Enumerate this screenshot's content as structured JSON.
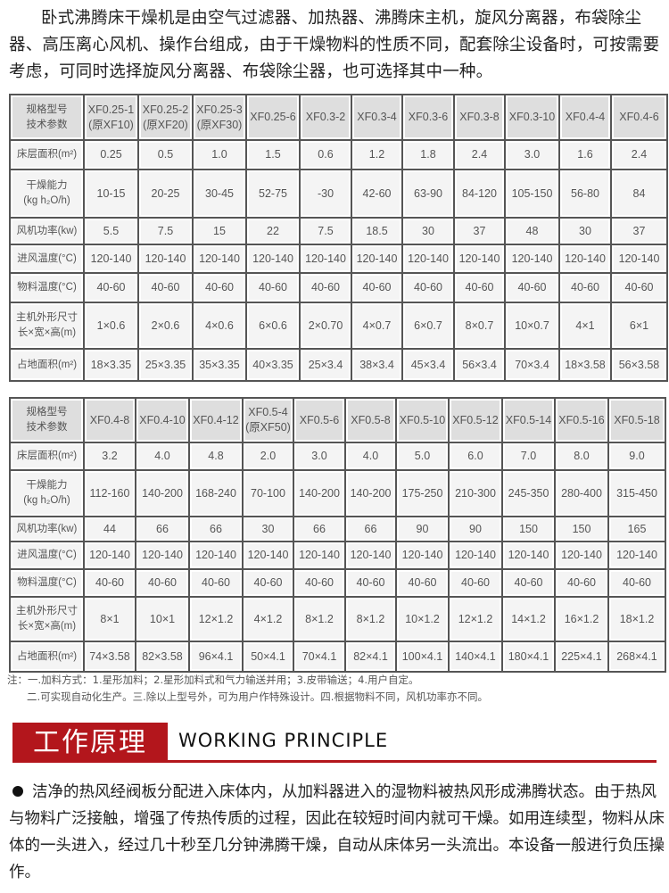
{
  "intro": "卧式沸腾床干燥机是由空气过滤器、加热器、沸腾床主机，旋风分离器，布袋除尘器、高压离心风机、操作台组成，由于干燥物料的性质不同，配套除尘设备时，可按需要考虑，可同时选择旋风分离器、布袋除尘器，也可选择其中一种。",
  "table1": {
    "header_label": [
      "规格型号",
      "技术参数"
    ],
    "models": [
      [
        "XF0.25-1",
        "(原XF10)"
      ],
      [
        "XF0.25-2",
        "(原XF20)"
      ],
      [
        "XF0.25-3",
        "(原XF30)"
      ],
      [
        "XF0.25-6",
        ""
      ],
      [
        "XF0.3-2",
        ""
      ],
      [
        "XF0.3-4",
        ""
      ],
      [
        "XF0.3-6",
        ""
      ],
      [
        "XF0.3-8",
        ""
      ],
      [
        "XF0.3-10",
        ""
      ],
      [
        "XF0.4-4",
        ""
      ],
      [
        "XF0.4-6",
        ""
      ]
    ],
    "rows": [
      {
        "label": [
          "床层面积(m²)"
        ],
        "values": [
          "0.25",
          "0.5",
          "1.0",
          "1.5",
          "0.6",
          "1.2",
          "1.8",
          "2.4",
          "3.0",
          "1.6",
          "2.4"
        ]
      },
      {
        "label": [
          "干燥能力",
          "(kg h₂O/h)"
        ],
        "values": [
          "10-15",
          "20-25",
          "30-45",
          "52-75",
          "-30",
          "42-60",
          "63-90",
          "84-120",
          "105-150",
          "56-80",
          "84"
        ]
      },
      {
        "label": [
          "风机功率(kw)"
        ],
        "values": [
          "5.5",
          "7.5",
          "15",
          "22",
          "7.5",
          "18.5",
          "30",
          "37",
          "48",
          "30",
          "37"
        ]
      },
      {
        "label": [
          "进风温度(°C)"
        ],
        "values": [
          "120-140",
          "120-140",
          "120-140",
          "120-140",
          "120-140",
          "120-140",
          "120-140",
          "120-140",
          "120-140",
          "120-140",
          "120-140"
        ]
      },
      {
        "label": [
          "物料温度(°C)"
        ],
        "values": [
          "40-60",
          "40-60",
          "40-60",
          "40-60",
          "40-60",
          "40-60",
          "40-60",
          "40-60",
          "40-60",
          "40-60",
          "40-60"
        ]
      },
      {
        "label": [
          "主机外形尺寸",
          "长×宽×高(m)"
        ],
        "values": [
          "1×0.6",
          "2×0.6",
          "4×0.6",
          "6×0.6",
          "2×0.70",
          "4×0.7",
          "6×0.7",
          "8×0.7",
          "10×0.7",
          "4×1",
          "6×1"
        ]
      },
      {
        "label": [
          "占地面积(m²)"
        ],
        "values": [
          "18×3.35",
          "25×3.35",
          "35×3.35",
          "40×3.35",
          "25×3.4",
          "38×3.4",
          "45×3.4",
          "56×3.4",
          "70×3.4",
          "18×3.58",
          "56×3.58"
        ]
      }
    ]
  },
  "table2": {
    "header_label": [
      "规格型号",
      "技术参数"
    ],
    "models": [
      [
        "XF0.4-8",
        ""
      ],
      [
        "XF0.4-10",
        ""
      ],
      [
        "XF0.4-12",
        ""
      ],
      [
        "XF0.5-4",
        "(原XF50)"
      ],
      [
        "XF0.5-6",
        ""
      ],
      [
        "XF0.5-8",
        ""
      ],
      [
        "XF0.5-10",
        ""
      ],
      [
        "XF0.5-12",
        ""
      ],
      [
        "XF0.5-14",
        ""
      ],
      [
        "XF0.5-16",
        ""
      ],
      [
        "XF0.5-18",
        ""
      ]
    ],
    "rows": [
      {
        "label": [
          "床层面积(m²)"
        ],
        "values": [
          "3.2",
          "4.0",
          "4.8",
          "2.0",
          "3.0",
          "4.0",
          "5.0",
          "6.0",
          "7.0",
          "8.0",
          "9.0"
        ]
      },
      {
        "label": [
          "干燥能力",
          "(kg h₂O/h)"
        ],
        "values": [
          "112-160",
          "140-200",
          "168-240",
          "70-100",
          "140-200",
          "140-200",
          "175-250",
          "210-300",
          "245-350",
          "280-400",
          "315-450"
        ]
      },
      {
        "label": [
          "风机功率(kw)"
        ],
        "values": [
          "44",
          "66",
          "66",
          "30",
          "66",
          "66",
          "90",
          "90",
          "150",
          "150",
          "165"
        ]
      },
      {
        "label": [
          "进风温度(°C)"
        ],
        "values": [
          "120-140",
          "120-140",
          "120-140",
          "120-140",
          "120-140",
          "120-140",
          "120-140",
          "120-140",
          "120-140",
          "120-140",
          "120-140"
        ]
      },
      {
        "label": [
          "物料温度(°C)"
        ],
        "values": [
          "40-60",
          "40-60",
          "40-60",
          "40-60",
          "40-60",
          "40-60",
          "40-60",
          "40-60",
          "40-60",
          "40-60",
          "40-60"
        ]
      },
      {
        "label": [
          "主机外形尺寸",
          "长×宽×高(m)"
        ],
        "values": [
          "8×1",
          "10×1",
          "12×1.2",
          "4×1.2",
          "8×1.2",
          "8×1.2",
          "10×1.2",
          "12×1.2",
          "14×1.2",
          "16×1.2",
          "18×1.2"
        ]
      },
      {
        "label": [
          "占地面积(m²)"
        ],
        "values": [
          "74×3.58",
          "82×3.58",
          "96×4.1",
          "50×4.1",
          "70×4.1",
          "82×4.1",
          "100×4.1",
          "140×4.1",
          "180×4.1",
          "225×4.1",
          "268×4.1"
        ]
      }
    ]
  },
  "notes": [
    "注：一.加料方式：1.星形加料；2.星形加料式和气力输送并用；3.皮带输送；4.用户自定。",
    "二.可实现自动化生产。三.除以上型号外，可为用户作特殊设计。四.根据物料不同，风机功率亦不同。"
  ],
  "section": {
    "title_cn": "工作原理",
    "title_en": "WORKING PRINCIPLE",
    "accent": "#b3161c"
  },
  "principle": "洁净的热风经阀板分配进入床体内，从加料器进入的湿物料被热风形成沸腾状态。由于热风与物料广泛接触，增强了传热传质的过程，因此在较短时间内就可干燥。如用连续型，物料从床体的一头进入，经过几十秒至几分钟沸腾干燥，自动从床体另一头流出。本设备一般进行负压操作。"
}
